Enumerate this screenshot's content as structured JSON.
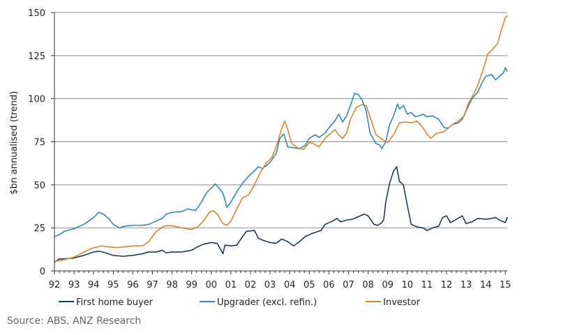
{
  "chart_data": {
    "type": "line",
    "title": "",
    "ylabel": "$bn annualised (trend)",
    "xlabel": "",
    "xlim": [
      1992,
      2015.1
    ],
    "ylim": [
      0,
      150
    ],
    "y_ticks": [
      0,
      25,
      50,
      75,
      100,
      125,
      150
    ],
    "x_ticks": [
      {
        "v": 1992,
        "label": "92"
      },
      {
        "v": 1993,
        "label": "93"
      },
      {
        "v": 1994,
        "label": "94"
      },
      {
        "v": 1995,
        "label": "95"
      },
      {
        "v": 1996,
        "label": "96"
      },
      {
        "v": 1997,
        "label": "97"
      },
      {
        "v": 1998,
        "label": "98"
      },
      {
        "v": 1999,
        "label": "99"
      },
      {
        "v": 2000,
        "label": "00"
      },
      {
        "v": 2001,
        "label": "01"
      },
      {
        "v": 2002,
        "label": "02"
      },
      {
        "v": 2003,
        "label": "03"
      },
      {
        "v": 2004,
        "label": "04"
      },
      {
        "v": 2005,
        "label": "05"
      },
      {
        "v": 2006,
        "label": "06"
      },
      {
        "v": 2007,
        "label": "07"
      },
      {
        "v": 2008,
        "label": "08"
      },
      {
        "v": 2009,
        "label": "09"
      },
      {
        "v": 2010,
        "label": "10"
      },
      {
        "v": 2011,
        "label": "11"
      },
      {
        "v": 2012,
        "label": "12"
      },
      {
        "v": 2013,
        "label": "13"
      },
      {
        "v": 2014,
        "label": "14"
      },
      {
        "v": 2015,
        "label": "15"
      }
    ],
    "grid": "horizontal",
    "legend_position": "bottom",
    "series": [
      {
        "name": "First home buyer",
        "color": "#1b3a56",
        "points": [
          [
            1992.0,
            5
          ],
          [
            1992.25,
            7
          ],
          [
            1992.5,
            7
          ],
          [
            1993.0,
            7.5
          ],
          [
            1993.5,
            9
          ],
          [
            1994.0,
            11
          ],
          [
            1994.3,
            11.5
          ],
          [
            1994.6,
            10.5
          ],
          [
            1995.0,
            9
          ],
          [
            1995.5,
            8.5
          ],
          [
            1996.0,
            9
          ],
          [
            1996.5,
            10
          ],
          [
            1996.8,
            11
          ],
          [
            1997.2,
            11
          ],
          [
            1997.5,
            12
          ],
          [
            1997.7,
            10.5
          ],
          [
            1998.0,
            11
          ],
          [
            1998.5,
            11
          ],
          [
            1999.0,
            12
          ],
          [
            1999.3,
            14
          ],
          [
            1999.6,
            15.5
          ],
          [
            2000.0,
            16.5
          ],
          [
            2000.3,
            16
          ],
          [
            2000.5,
            12
          ],
          [
            2000.6,
            10
          ],
          [
            2000.7,
            15
          ],
          [
            2001.0,
            14.5
          ],
          [
            2001.3,
            15
          ],
          [
            2001.6,
            20
          ],
          [
            2001.8,
            23
          ],
          [
            2002.2,
            23.5
          ],
          [
            2002.4,
            19
          ],
          [
            2002.7,
            17.5
          ],
          [
            2003.0,
            16.5
          ],
          [
            2003.3,
            16
          ],
          [
            2003.6,
            18.5
          ],
          [
            2003.9,
            17
          ],
          [
            2004.2,
            14.5
          ],
          [
            2004.5,
            17
          ],
          [
            2004.8,
            20
          ],
          [
            2005.2,
            22
          ],
          [
            2005.6,
            23.5
          ],
          [
            2005.8,
            27
          ],
          [
            2006.2,
            29
          ],
          [
            2006.4,
            30.5
          ],
          [
            2006.6,
            28.5
          ],
          [
            2006.9,
            29.5
          ],
          [
            2007.2,
            30
          ],
          [
            2007.6,
            32
          ],
          [
            2007.8,
            33
          ],
          [
            2008.0,
            32
          ],
          [
            2008.3,
            27
          ],
          [
            2008.5,
            26.5
          ],
          [
            2008.7,
            28
          ],
          [
            2008.8,
            30
          ],
          [
            2008.9,
            40
          ],
          [
            2009.1,
            51
          ],
          [
            2009.3,
            58
          ],
          [
            2009.45,
            60.5
          ],
          [
            2009.6,
            52
          ],
          [
            2009.7,
            51
          ],
          [
            2009.8,
            50
          ],
          [
            2010.0,
            38
          ],
          [
            2010.2,
            27
          ],
          [
            2010.5,
            25.5
          ],
          [
            2010.8,
            25
          ],
          [
            2011.0,
            23.5
          ],
          [
            2011.3,
            25
          ],
          [
            2011.6,
            26
          ],
          [
            2011.8,
            31
          ],
          [
            2012.0,
            32
          ],
          [
            2012.2,
            28
          ],
          [
            2012.5,
            30
          ],
          [
            2012.8,
            32
          ],
          [
            2013.0,
            27.5
          ],
          [
            2013.3,
            28.5
          ],
          [
            2013.6,
            30.5
          ],
          [
            2014.0,
            30
          ],
          [
            2014.3,
            30.5
          ],
          [
            2014.5,
            31
          ],
          [
            2014.7,
            29.5
          ],
          [
            2015.0,
            28
          ],
          [
            2015.1,
            31
          ]
        ]
      },
      {
        "name": "Upgrader (excl. refin.)",
        "color": "#3186b8",
        "points": [
          [
            1992.0,
            20
          ],
          [
            1992.25,
            21
          ],
          [
            1992.5,
            23
          ],
          [
            1993.0,
            24.5
          ],
          [
            1993.5,
            27
          ],
          [
            1994.0,
            31
          ],
          [
            1994.25,
            34
          ],
          [
            1994.5,
            33
          ],
          [
            1994.8,
            30
          ],
          [
            1995.0,
            27
          ],
          [
            1995.3,
            25
          ],
          [
            1995.6,
            26
          ],
          [
            1996.0,
            26.5
          ],
          [
            1996.5,
            26.5
          ],
          [
            1996.8,
            27
          ],
          [
            1997.2,
            29
          ],
          [
            1997.5,
            30.5
          ],
          [
            1997.7,
            33
          ],
          [
            1998.0,
            34
          ],
          [
            1998.5,
            34.5
          ],
          [
            1998.8,
            36
          ],
          [
            1999.2,
            35
          ],
          [
            1999.5,
            40
          ],
          [
            1999.8,
            46
          ],
          [
            2000.0,
            48
          ],
          [
            2000.2,
            50.5
          ],
          [
            2000.4,
            48
          ],
          [
            2000.6,
            45
          ],
          [
            2000.8,
            37
          ],
          [
            2001.0,
            40
          ],
          [
            2001.3,
            46
          ],
          [
            2001.6,
            51
          ],
          [
            2001.9,
            55
          ],
          [
            2002.2,
            58
          ],
          [
            2002.4,
            60.5
          ],
          [
            2002.6,
            59.5
          ],
          [
            2002.8,
            61
          ],
          [
            2003.0,
            63
          ],
          [
            2003.3,
            68
          ],
          [
            2003.5,
            77
          ],
          [
            2003.7,
            79.5
          ],
          [
            2003.9,
            72
          ],
          [
            2004.2,
            71.5
          ],
          [
            2004.5,
            71
          ],
          [
            2004.8,
            73
          ],
          [
            2005.0,
            77
          ],
          [
            2005.3,
            79
          ],
          [
            2005.5,
            77.5
          ],
          [
            2005.8,
            80
          ],
          [
            2006.0,
            83
          ],
          [
            2006.3,
            87
          ],
          [
            2006.5,
            91
          ],
          [
            2006.7,
            86.5
          ],
          [
            2006.9,
            90
          ],
          [
            2007.1,
            96
          ],
          [
            2007.3,
            103
          ],
          [
            2007.5,
            102.5
          ],
          [
            2007.7,
            99
          ],
          [
            2007.9,
            93
          ],
          [
            2008.1,
            80
          ],
          [
            2008.4,
            74
          ],
          [
            2008.6,
            73
          ],
          [
            2008.7,
            71
          ],
          [
            2008.9,
            75
          ],
          [
            2009.1,
            85
          ],
          [
            2009.3,
            90
          ],
          [
            2009.5,
            97
          ],
          [
            2009.6,
            94
          ],
          [
            2009.8,
            96
          ],
          [
            2010.0,
            91
          ],
          [
            2010.2,
            92
          ],
          [
            2010.4,
            89.5
          ],
          [
            2010.6,
            90
          ],
          [
            2010.8,
            91
          ],
          [
            2011.0,
            89.5
          ],
          [
            2011.3,
            90
          ],
          [
            2011.6,
            88
          ],
          [
            2011.9,
            83
          ],
          [
            2012.1,
            83
          ],
          [
            2012.3,
            85
          ],
          [
            2012.6,
            86
          ],
          [
            2012.8,
            88
          ],
          [
            2013.0,
            93
          ],
          [
            2013.3,
            100
          ],
          [
            2013.6,
            104
          ],
          [
            2013.8,
            109
          ],
          [
            2014.0,
            113
          ],
          [
            2014.3,
            114
          ],
          [
            2014.5,
            111
          ],
          [
            2014.7,
            113
          ],
          [
            2014.9,
            115
          ],
          [
            2015.0,
            118
          ],
          [
            2015.1,
            116
          ]
        ]
      },
      {
        "name": "Investor",
        "color": "#d9862a",
        "points": [
          [
            1992.0,
            5.5
          ],
          [
            1992.5,
            6.5
          ],
          [
            1993.0,
            8
          ],
          [
            1993.5,
            11
          ],
          [
            1994.0,
            13.5
          ],
          [
            1994.4,
            14.5
          ],
          [
            1994.8,
            14
          ],
          [
            1995.2,
            13.5
          ],
          [
            1995.6,
            14
          ],
          [
            1996.0,
            14.5
          ],
          [
            1996.5,
            14.5
          ],
          [
            1996.8,
            17
          ],
          [
            1997.2,
            23
          ],
          [
            1997.6,
            26
          ],
          [
            1997.9,
            26.5
          ],
          [
            1998.3,
            25.5
          ],
          [
            1998.7,
            24.5
          ],
          [
            1999.0,
            24
          ],
          [
            1999.3,
            25.5
          ],
          [
            1999.6,
            29
          ],
          [
            1999.9,
            34
          ],
          [
            2000.1,
            35
          ],
          [
            2000.3,
            33
          ],
          [
            2000.6,
            27.5
          ],
          [
            2000.8,
            26.5
          ],
          [
            2001.0,
            29
          ],
          [
            2001.3,
            36
          ],
          [
            2001.6,
            42.5
          ],
          [
            2001.9,
            44
          ],
          [
            2002.2,
            50
          ],
          [
            2002.5,
            57
          ],
          [
            2002.8,
            62.5
          ],
          [
            2003.1,
            66
          ],
          [
            2003.4,
            75
          ],
          [
            2003.6,
            83
          ],
          [
            2003.75,
            87
          ],
          [
            2003.9,
            82
          ],
          [
            2004.1,
            74
          ],
          [
            2004.4,
            71.5
          ],
          [
            2004.7,
            70.5
          ],
          [
            2005.0,
            74.5
          ],
          [
            2005.2,
            74
          ],
          [
            2005.5,
            72
          ],
          [
            2005.8,
            77
          ],
          [
            2006.0,
            79
          ],
          [
            2006.3,
            82
          ],
          [
            2006.5,
            79
          ],
          [
            2006.7,
            77
          ],
          [
            2006.9,
            80
          ],
          [
            2007.1,
            88
          ],
          [
            2007.4,
            95
          ],
          [
            2007.7,
            96.5
          ],
          [
            2007.9,
            96
          ],
          [
            2008.2,
            86
          ],
          [
            2008.4,
            79
          ],
          [
            2008.7,
            76.5
          ],
          [
            2009.0,
            74.5
          ],
          [
            2009.3,
            79
          ],
          [
            2009.6,
            86
          ],
          [
            2009.9,
            86.5
          ],
          [
            2010.2,
            86
          ],
          [
            2010.5,
            87
          ],
          [
            2010.8,
            83
          ],
          [
            2011.0,
            79.5
          ],
          [
            2011.2,
            77
          ],
          [
            2011.5,
            80
          ],
          [
            2011.8,
            80.5
          ],
          [
            2012.0,
            82
          ],
          [
            2012.3,
            85
          ],
          [
            2012.6,
            87
          ],
          [
            2012.9,
            90
          ],
          [
            2013.1,
            97
          ],
          [
            2013.4,
            103
          ],
          [
            2013.6,
            108
          ],
          [
            2013.9,
            118
          ],
          [
            2014.1,
            126
          ],
          [
            2014.3,
            128
          ],
          [
            2014.6,
            132
          ],
          [
            2014.8,
            140
          ],
          [
            2015.0,
            147
          ],
          [
            2015.1,
            148
          ]
        ]
      }
    ]
  },
  "source": "Source: ABS, ANZ Research"
}
